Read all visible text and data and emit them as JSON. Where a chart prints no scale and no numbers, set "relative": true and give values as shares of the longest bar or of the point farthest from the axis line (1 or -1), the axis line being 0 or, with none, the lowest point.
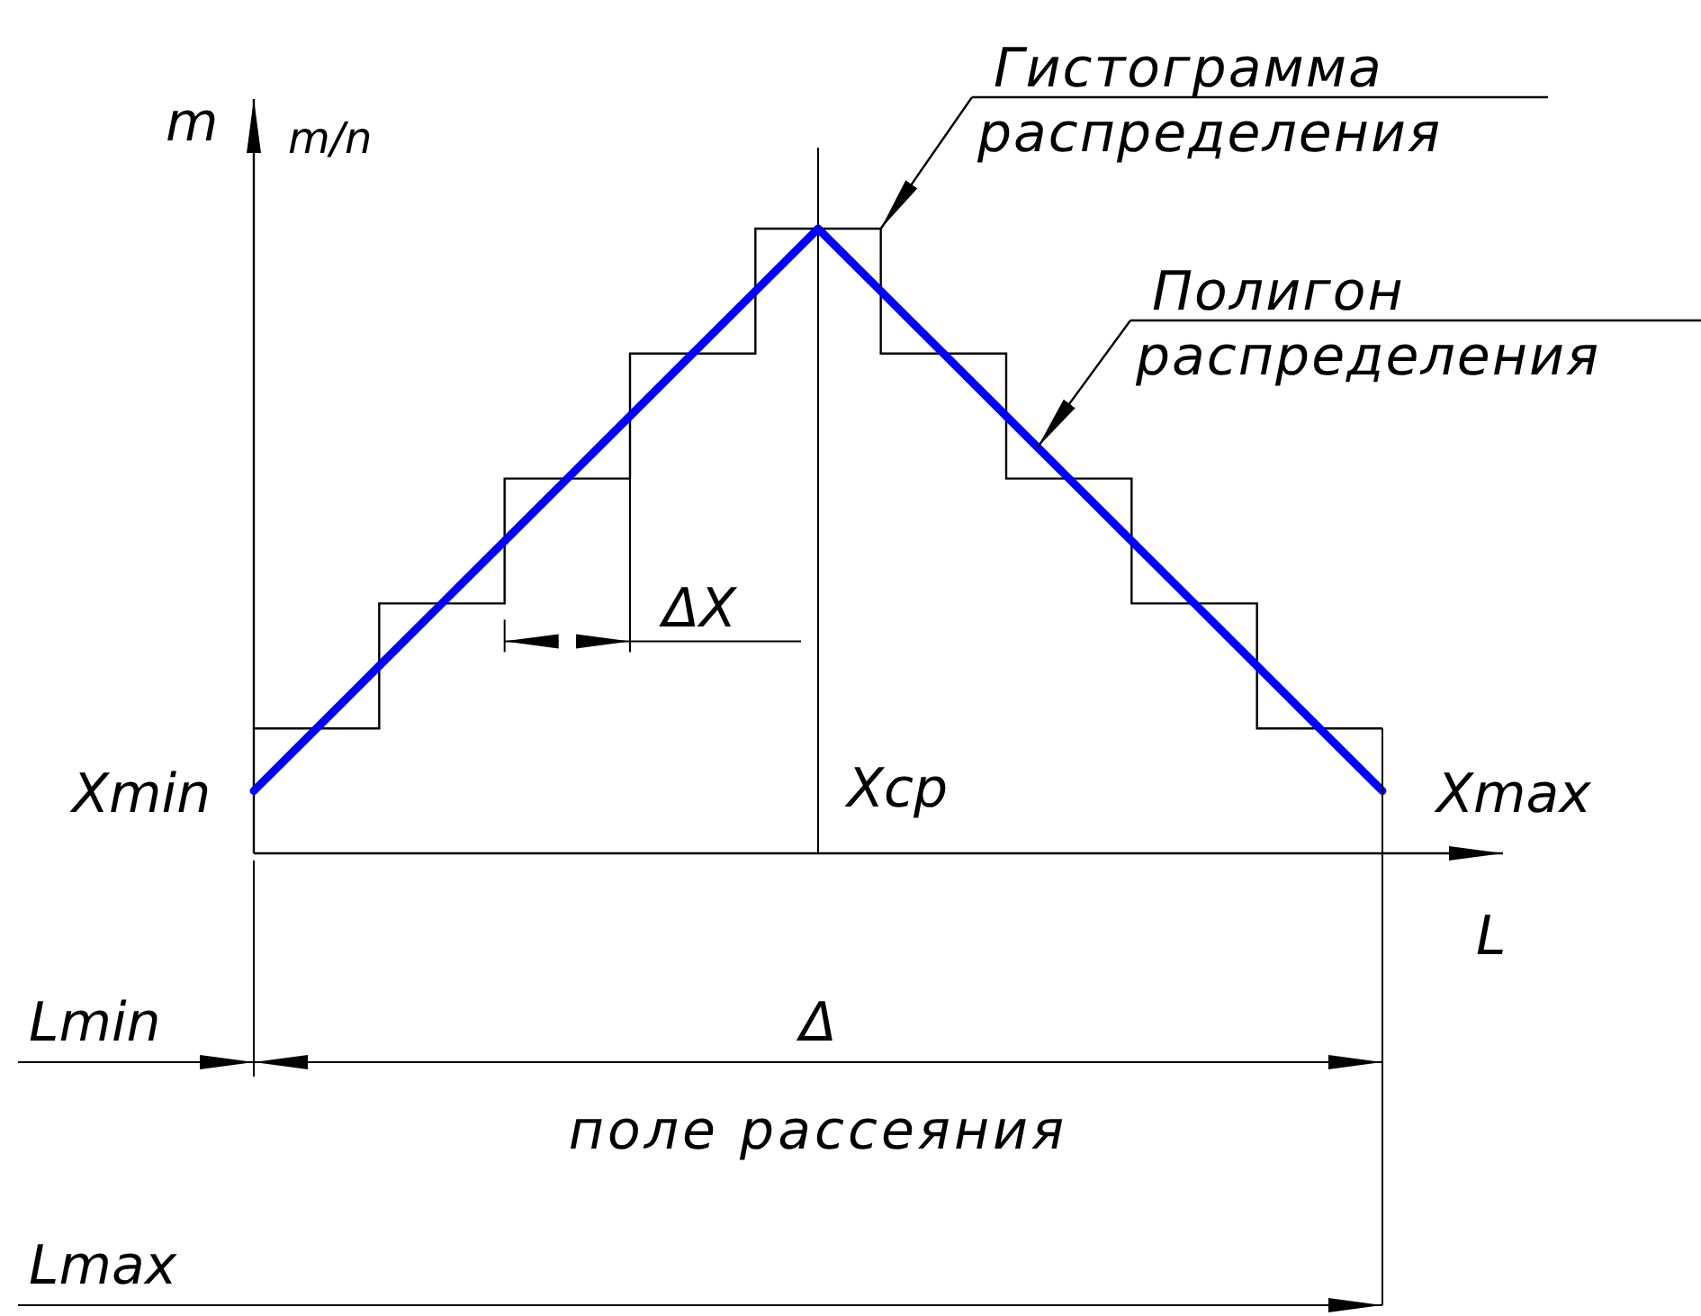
{
  "chart_data": {
    "type": "step",
    "relative": true,
    "xlabel": "L",
    "ylabel": "m",
    "categories": [
      null,
      null,
      null,
      null,
      null,
      null,
      null,
      null,
      null,
      null,
      null,
      null,
      null,
      null,
      null,
      null,
      null,
      null,
      null
    ],
    "values": [
      0.2,
      0.2,
      0.4,
      0.4,
      0.6,
      0.6,
      0.8,
      0.8,
      1.0,
      1.0,
      0.8,
      0.8,
      0.6,
      0.6,
      0.4,
      0.4,
      0.2,
      0.2,
      0.2
    ],
    "color": "#000000",
    "series": [
      {
        "type": "line",
        "color": "#0000ff",
        "values": [
          0.1,
          0.2,
          0.3,
          0.4,
          0.5,
          0.6,
          0.7,
          0.8,
          0.9,
          1.0,
          0.9,
          0.8,
          0.7,
          0.6,
          0.5,
          0.4,
          0.3,
          0.2,
          0.1
        ]
      }
    ],
    "annotations": [
      "Гистограмма распределения",
      "Полигон распределения",
      "ΔX",
      "Xmin",
      "Xср",
      "Xmax",
      "Lmin",
      "Δ",
      "поле рассеяния",
      "Lmax",
      "m/n"
    ]
  }
}
